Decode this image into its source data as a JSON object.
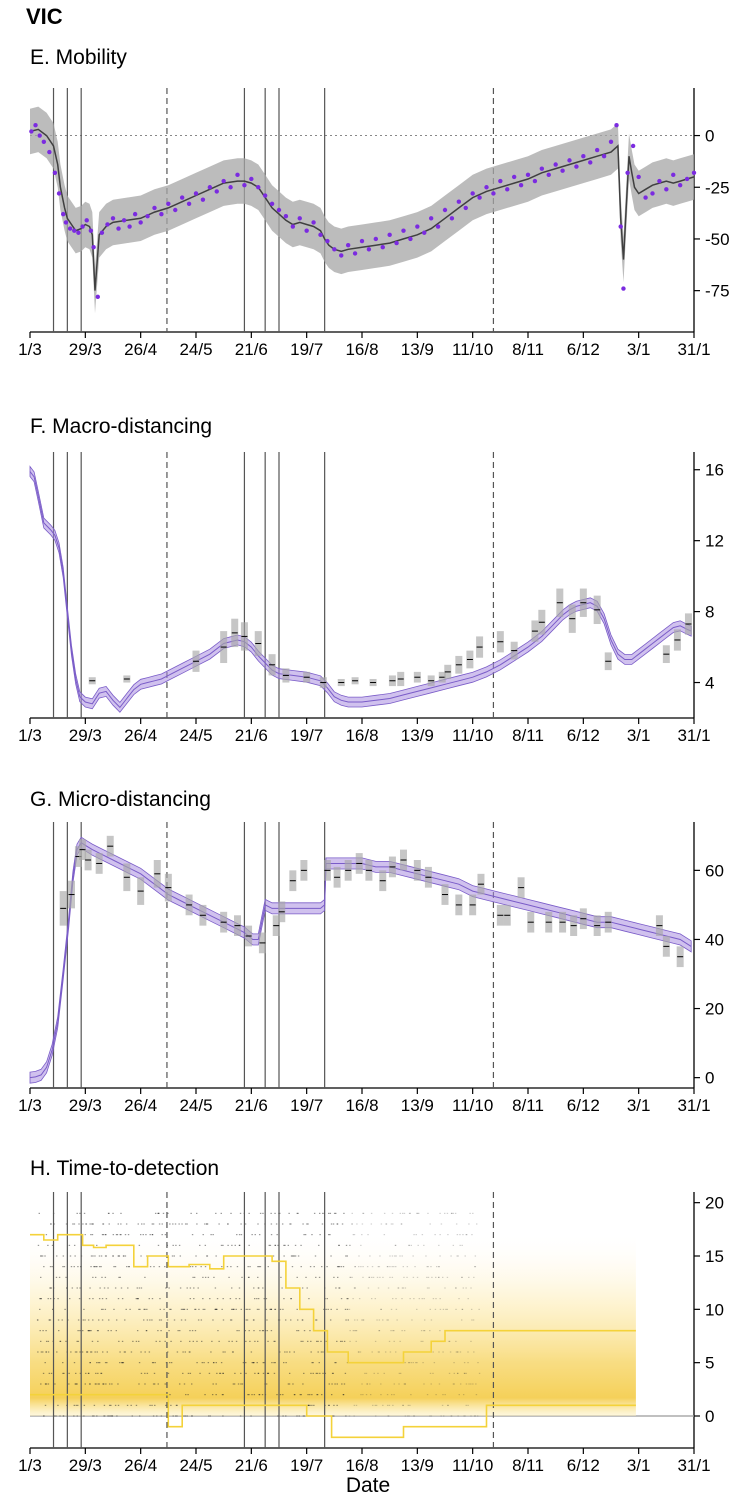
{
  "figure": {
    "title": "VIC",
    "xlabel": "Date",
    "x_tick_labels": [
      "1/3",
      "29/3",
      "26/4",
      "24/5",
      "21/6",
      "19/7",
      "16/8",
      "13/9",
      "11/10",
      "8/11",
      "6/12",
      "3/1",
      "31/1"
    ],
    "day_range": [
      0,
      336
    ],
    "interventions_solid_days": [
      17,
      27,
      37,
      155,
      170,
      180,
      213
    ],
    "interventions_dashed_days": [
      99,
      335
    ],
    "colors": {
      "purple": "#a98ee0",
      "purple_dark": "#7a5cc8",
      "dot_purple": "#7b2be0",
      "grey_band": "#a6a6a6",
      "line_dark": "#404040",
      "yellow": "#f4d23a",
      "yellow_light": "#fdf1c0"
    }
  },
  "chart_data": [
    {
      "id": "E",
      "type": "line",
      "title": "E. Mobility",
      "ylim": [
        -95,
        23
      ],
      "yticks": [
        0,
        -25,
        -50,
        -75
      ],
      "ytick_labels": [
        "0",
        "-25",
        "-50",
        "-75"
      ],
      "zero_reference_line": 0,
      "series": [
        {
          "name": "fitted mobility",
          "x": [
            0,
            6,
            12,
            17,
            20,
            22,
            25,
            27,
            30,
            33,
            37,
            40,
            43,
            45,
            47,
            50,
            55,
            60,
            70,
            80,
            90,
            100,
            110,
            120,
            130,
            140,
            150,
            155,
            160,
            165,
            170,
            175,
            180,
            185,
            190,
            195,
            200,
            205,
            210,
            213,
            216,
            220,
            225,
            230,
            240,
            250,
            260,
            270,
            280,
            290,
            300,
            310,
            320,
            330,
            340,
            350,
            360,
            370,
            380,
            390,
            400,
            410,
            420,
            425,
            427,
            429,
            431,
            433,
            435,
            437,
            440,
            445,
            450,
            455,
            460,
            465,
            470,
            475,
            480
          ],
          "y": [
            2,
            3,
            0,
            -5,
            -14,
            -25,
            -35,
            -40,
            -43,
            -46,
            -45,
            -43,
            -44,
            -48,
            -75,
            -48,
            -44,
            -42,
            -41,
            -40,
            -37,
            -35,
            -32,
            -29,
            -26,
            -23,
            -22,
            -22,
            -23,
            -25,
            -30,
            -35,
            -38,
            -41,
            -43,
            -42,
            -43,
            -44,
            -46,
            -50,
            -53,
            -55,
            -56,
            -55,
            -54,
            -53,
            -52,
            -50,
            -48,
            -45,
            -40,
            -35,
            -30,
            -27,
            -25,
            -23,
            -21,
            -18,
            -16,
            -14,
            -12,
            -10,
            -8,
            -5,
            -40,
            -60,
            -35,
            -10,
            -18,
            -25,
            -28,
            -26,
            -24,
            -23,
            -22,
            -23,
            -22,
            -21,
            -20
          ]
        },
        {
          "name": "observed",
          "marker": "dot",
          "x": [
            1,
            4,
            7,
            10,
            14,
            18,
            21,
            24,
            26,
            29,
            32,
            35,
            38,
            41,
            44,
            46,
            49,
            52,
            56,
            60,
            64,
            68,
            72,
            76,
            80,
            85,
            90,
            95,
            100,
            105,
            110,
            115,
            120,
            125,
            130,
            135,
            140,
            145,
            150,
            155,
            160,
            165,
            170,
            175,
            180,
            185,
            190,
            195,
            200,
            205,
            210,
            215,
            220,
            225,
            230,
            235,
            240,
            245,
            250,
            255,
            260,
            265,
            270,
            275,
            280,
            285,
            290,
            295,
            300,
            305,
            310,
            315,
            320,
            325,
            330,
            335,
            340,
            345,
            350,
            355,
            360,
            365,
            370,
            375,
            380,
            385,
            390,
            395,
            400,
            405,
            410,
            415,
            420,
            424,
            427,
            429,
            432,
            436,
            440,
            445,
            450,
            455,
            460,
            465,
            470,
            475,
            480
          ],
          "y": [
            2,
            5,
            0,
            -3,
            -8,
            -18,
            -28,
            -38,
            -42,
            -45,
            -46,
            -47,
            -44,
            -41,
            -46,
            -54,
            -78,
            -47,
            -43,
            -40,
            -45,
            -41,
            -44,
            -38,
            -42,
            -39,
            -35,
            -38,
            -33,
            -36,
            -30,
            -33,
            -28,
            -31,
            -25,
            -27,
            -22,
            -25,
            -19,
            -24,
            -21,
            -25,
            -29,
            -33,
            -36,
            -39,
            -44,
            -40,
            -46,
            -42,
            -48,
            -51,
            -55,
            -58,
            -53,
            -57,
            -51,
            -55,
            -50,
            -54,
            -48,
            -52,
            -46,
            -50,
            -44,
            -47,
            -40,
            -44,
            -36,
            -40,
            -32,
            -35,
            -28,
            -30,
            -25,
            -28,
            -22,
            -26,
            -20,
            -24,
            -19,
            -22,
            -16,
            -19,
            -14,
            -17,
            -12,
            -15,
            -10,
            -13,
            -7,
            -10,
            -3,
            5,
            -44,
            -74,
            -18,
            -5,
            -20,
            -30,
            -28,
            -22,
            -26,
            -19,
            -24,
            -21,
            -18
          ]
        }
      ]
    },
    {
      "id": "F",
      "type": "line",
      "title": "F. Macro-distancing",
      "ylim": [
        2,
        17
      ],
      "yticks": [
        4,
        8,
        12,
        16
      ],
      "ytick_labels": [
        "4",
        "8",
        "12",
        "16"
      ],
      "series": [
        {
          "name": "macro-distancing estimate",
          "x": [
            0,
            3,
            6,
            10,
            15,
            18,
            21,
            24,
            27,
            30,
            33,
            36,
            40,
            45,
            50,
            55,
            60,
            65,
            70,
            75,
            80,
            85,
            90,
            95,
            100,
            110,
            120,
            130,
            140,
            150,
            155,
            160,
            165,
            170,
            175,
            180,
            190,
            200,
            210,
            215,
            220,
            225,
            230,
            240,
            250,
            260,
            270,
            280,
            290,
            300,
            310,
            320,
            330,
            340,
            350,
            360,
            370,
            375,
            380,
            385,
            390,
            395,
            400,
            405,
            410,
            415,
            420,
            425,
            430,
            435,
            440,
            445,
            450,
            455,
            460,
            465,
            470,
            475,
            478
          ],
          "y": [
            15.9,
            15.6,
            14.5,
            13.0,
            12.6,
            12.3,
            11.6,
            10.2,
            8.0,
            5.8,
            4.2,
            3.2,
            2.9,
            2.8,
            3.4,
            3.5,
            3.0,
            2.6,
            3.1,
            3.6,
            3.9,
            4.0,
            4.1,
            4.2,
            4.4,
            4.8,
            5.2,
            5.6,
            6.2,
            6.4,
            6.3,
            6.0,
            5.5,
            5.1,
            4.7,
            4.5,
            4.4,
            4.3,
            4.1,
            3.7,
            3.2,
            3.0,
            2.9,
            2.9,
            3.0,
            3.1,
            3.3,
            3.5,
            3.7,
            3.9,
            4.1,
            4.3,
            4.6,
            5.0,
            5.5,
            6.0,
            6.6,
            7.0,
            7.4,
            7.8,
            8.1,
            8.3,
            8.4,
            8.5,
            8.3,
            7.6,
            6.4,
            5.6,
            5.3,
            5.3,
            5.6,
            5.9,
            6.2,
            6.5,
            6.8,
            7.1,
            7.2,
            7.0,
            6.9
          ]
        },
        {
          "name": "survey estimates",
          "marker": "box",
          "x": [
            45,
            70,
            120,
            140,
            148,
            155,
            165,
            175,
            185,
            200,
            212,
            225,
            235,
            248,
            262,
            268,
            280,
            290,
            298,
            302,
            310,
            318,
            325,
            340,
            350,
            365,
            370,
            383,
            392,
            400,
            410,
            418,
            460,
            468,
            476
          ],
          "y": [
            4.1,
            4.2,
            5.2,
            6.0,
            6.8,
            6.6,
            6.2,
            5.0,
            4.4,
            4.3,
            4.0,
            4.0,
            4.1,
            4.0,
            4.1,
            4.2,
            4.3,
            4.1,
            4.3,
            4.6,
            5.0,
            5.3,
            6.0,
            6.3,
            5.8,
            6.9,
            7.4,
            8.5,
            7.6,
            8.5,
            8.1,
            5.2,
            5.6,
            6.4,
            7.3
          ],
          "half_range": [
            0.2,
            0.2,
            0.6,
            0.9,
            0.8,
            0.8,
            0.7,
            0.6,
            0.4,
            0.3,
            0.3,
            0.2,
            0.2,
            0.2,
            0.3,
            0.4,
            0.3,
            0.3,
            0.3,
            0.4,
            0.5,
            0.5,
            0.6,
            0.6,
            0.5,
            0.6,
            0.7,
            0.8,
            0.8,
            0.8,
            0.8,
            0.5,
            0.5,
            0.6,
            0.6
          ]
        }
      ]
    },
    {
      "id": "G",
      "type": "line",
      "title": "G. Micro-distancing",
      "ylim": [
        -3,
        74
      ],
      "yticks": [
        0,
        20,
        40,
        60
      ],
      "ytick_labels": [
        "0",
        "20",
        "40",
        "60"
      ],
      "series": [
        {
          "name": "micro-distancing estimate",
          "x": [
            0,
            4,
            8,
            12,
            16,
            20,
            24,
            28,
            31,
            34,
            37,
            41,
            45,
            50,
            60,
            70,
            80,
            90,
            100,
            110,
            120,
            130,
            140,
            150,
            155,
            158,
            161,
            165,
            170,
            175,
            180,
            190,
            200,
            210,
            213,
            214,
            216,
            220,
            230,
            240,
            250,
            260,
            270,
            280,
            290,
            300,
            310,
            320,
            330,
            340,
            350,
            360,
            370,
            380,
            390,
            400,
            410,
            420,
            430,
            440,
            450,
            460,
            470,
            478
          ],
          "y": [
            0,
            0.2,
            0.8,
            3,
            8,
            16,
            30,
            45,
            58,
            66,
            68,
            67,
            66,
            65,
            63,
            61,
            59,
            56,
            53,
            51,
            49,
            47,
            45,
            43,
            42,
            41,
            40,
            40,
            50,
            49,
            49,
            49,
            49,
            49,
            50,
            62,
            62,
            62,
            62,
            62,
            61,
            61,
            60,
            59,
            58,
            57,
            56,
            54,
            53,
            52,
            51,
            50,
            49,
            48,
            47,
            46,
            45,
            45,
            44,
            43,
            42,
            41,
            40,
            38
          ]
        },
        {
          "name": "survey estimates",
          "marker": "box",
          "x": [
            24,
            30,
            35,
            38,
            42,
            50,
            58,
            70,
            80,
            92,
            100,
            115,
            125,
            140,
            150,
            158,
            168,
            178,
            182,
            190,
            198,
            215,
            222,
            230,
            238,
            245,
            255,
            262,
            270,
            280,
            288,
            300,
            310,
            320,
            326,
            340,
            345,
            355,
            362,
            375,
            385,
            393,
            400,
            410,
            418,
            455,
            460,
            470
          ],
          "y": [
            49,
            53,
            64,
            66,
            63,
            62,
            67,
            58,
            54,
            59,
            55,
            50,
            47,
            45,
            44,
            41,
            39,
            44,
            48,
            57,
            60,
            60,
            58,
            60,
            62,
            60,
            57,
            61,
            63,
            60,
            58,
            53,
            50,
            50,
            56,
            47,
            47,
            55,
            45,
            45,
            45,
            44,
            46,
            44,
            45,
            44,
            38,
            35
          ],
          "half_range": [
            5,
            4,
            3,
            3,
            3,
            3,
            3,
            4,
            4,
            4,
            4,
            3,
            3,
            3,
            3,
            3,
            3,
            3,
            3,
            3,
            3,
            3,
            3,
            3,
            3,
            3,
            3,
            3,
            3,
            3,
            3,
            3,
            3,
            3,
            3,
            3,
            3,
            3,
            3,
            3,
            3,
            3,
            3,
            3,
            3,
            3,
            3,
            3
          ]
        }
      ]
    },
    {
      "id": "H",
      "type": "scatter",
      "title": "H. Time-to-detection",
      "ylim": [
        -3,
        21
      ],
      "yticks": [
        0,
        5,
        10,
        15,
        20
      ],
      "ytick_labels": [
        "0",
        "5",
        "10",
        "15",
        "20"
      ],
      "zero_reference_line": 0,
      "series": [
        {
          "name": "upper 95% interval",
          "step": true,
          "x": [
            0,
            10,
            20,
            38,
            46,
            55,
            75,
            85,
            100,
            115,
            130,
            140,
            160,
            175,
            185,
            195,
            205,
            215,
            230,
            255,
            270,
            280,
            290,
            295,
            300,
            305,
            314,
            330,
            438
          ],
          "y": [
            17,
            16.5,
            17,
            16,
            15.8,
            16,
            14,
            15,
            14,
            14.2,
            13.8,
            15,
            15,
            14.5,
            12,
            10,
            8,
            6,
            5,
            5,
            6,
            6,
            7,
            7,
            8,
            8,
            8,
            8,
            8
          ]
        },
        {
          "name": "lower 95% interval",
          "step": true,
          "x": [
            0,
            90,
            100,
            110,
            180,
            200,
            218,
            225,
            242,
            270,
            310,
            330,
            438
          ],
          "y": [
            2,
            2,
            -1,
            1,
            1,
            0,
            -2,
            -2,
            -2,
            -1,
            -1,
            1,
            1
          ]
        },
        {
          "name": "detection density",
          "type": "heatmap-band",
          "x_range": [
            0,
            438
          ],
          "y_range": [
            0,
            17
          ],
          "peak_y": 3.5
        }
      ]
    }
  ]
}
